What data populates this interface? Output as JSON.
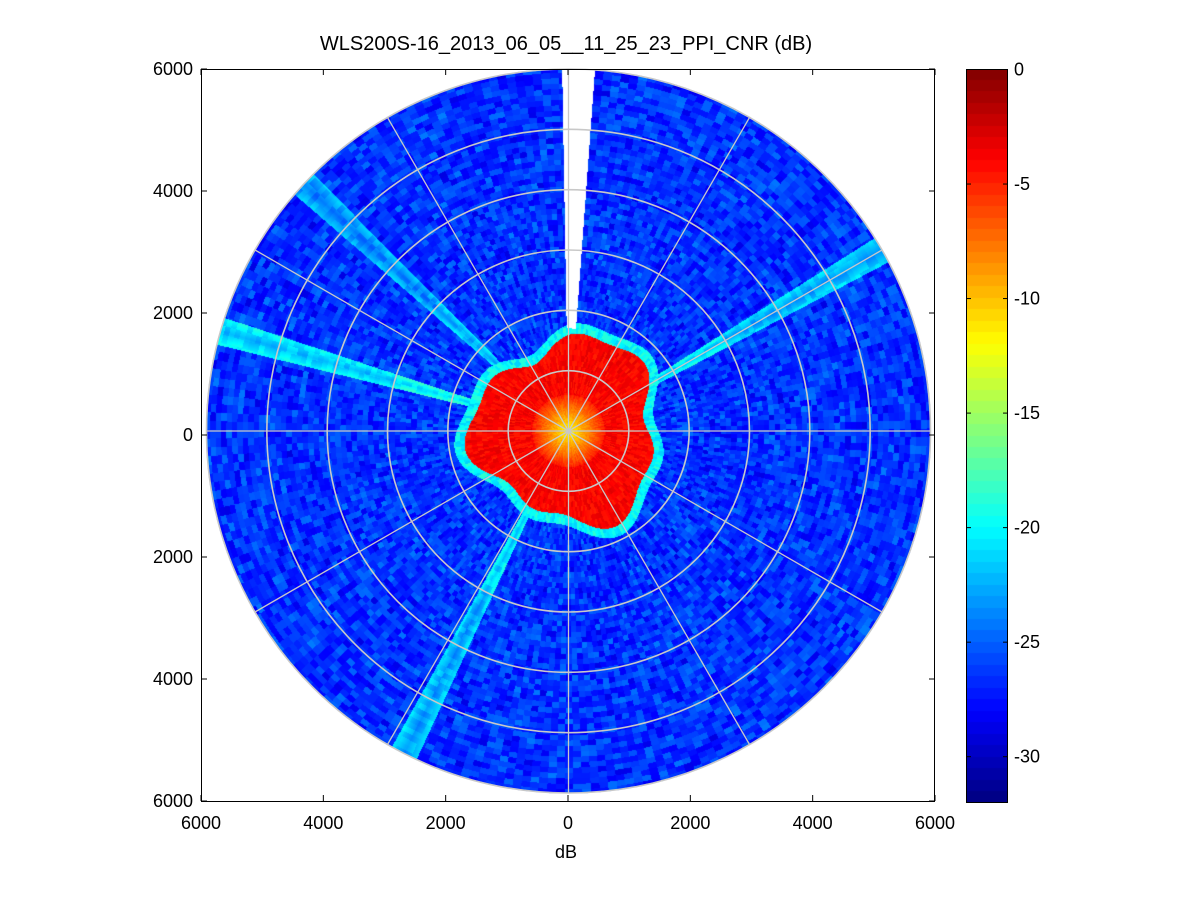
{
  "title": "WLS200S-16_2013_06_05__11_25_23_PPI_CNR (dB)",
  "chart_data": {
    "type": "heatmap",
    "subtype": "polar-ppi",
    "title": "WLS200S-16_2013_06_05__11_25_23_PPI_CNR (dB)",
    "xlabel": "dB",
    "ylabel": "",
    "xlim": [
      -6000,
      6000
    ],
    "ylim": [
      -6000,
      6000
    ],
    "x_tick_labels": [
      "6000",
      "4000",
      "2000",
      "0",
      "2000",
      "4000",
      "6000"
    ],
    "y_tick_labels": [
      "6000",
      "4000",
      "2000",
      "0",
      "2000",
      "4000",
      "6000"
    ],
    "max_range": 6000,
    "range_rings": [
      1000,
      2000,
      3000,
      4000,
      5000,
      6000
    ],
    "azimuth_spokes_deg": [
      0,
      30,
      60,
      90,
      120,
      150,
      180,
      210,
      240,
      270,
      300,
      330
    ],
    "grid": true,
    "colormap": "jet",
    "colorbar": {
      "clim": [
        -32,
        0
      ],
      "tick_labels": [
        "0",
        "-5",
        "-10",
        "-15",
        "-20",
        "-25",
        "-30"
      ],
      "location": "right"
    },
    "field_regions": [
      {
        "name": "near-field core",
        "range_m": [
          0,
          600
        ],
        "cnr_db": [
          -12,
          -5
        ]
      },
      {
        "name": "high-return disk",
        "range_m": [
          600,
          1500
        ],
        "cnr_db": [
          -5,
          -3
        ]
      },
      {
        "name": "disk edge",
        "range_m": [
          1500,
          1700
        ],
        "cnr_db": [
          -22,
          -19
        ]
      },
      {
        "name": "background",
        "range_m": [
          1700,
          6000
        ],
        "cnr_db": [
          -29,
          -24
        ]
      }
    ],
    "no_data_wedges_deg": [
      [
        -1,
        1.2
      ],
      [
        1.2,
        4.2
      ]
    ],
    "enhanced_beams_deg": [
      {
        "azimuth": -47,
        "cnr_db": -23
      },
      {
        "azimuth": 60,
        "cnr_db": -22
      },
      {
        "azimuth": -74,
        "cnr_db": -21
      },
      {
        "azimuth": 207,
        "cnr_db": -22
      }
    ]
  }
}
